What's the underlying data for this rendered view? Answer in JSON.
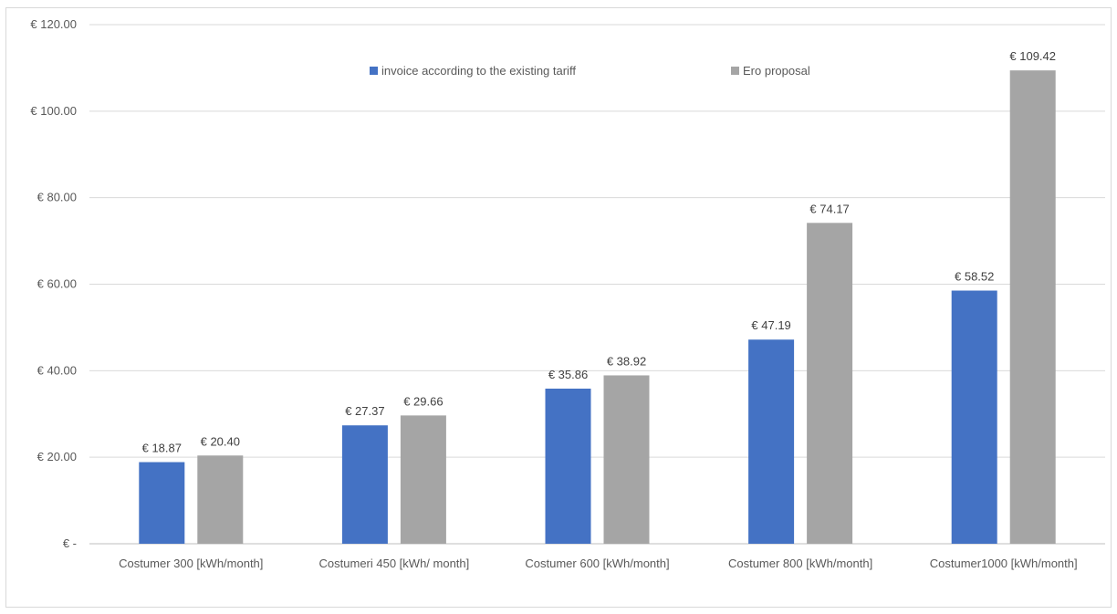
{
  "chart_data": {
    "type": "bar",
    "title": "",
    "xlabel": "",
    "ylabel": "",
    "ylim": [
      0,
      120
    ],
    "yticks": [
      0,
      20,
      40,
      60,
      80,
      100,
      120
    ],
    "ytick_labels": [
      "€ -",
      "€ 20.00",
      "€ 40.00",
      "€ 60.00",
      "€ 80.00",
      "€ 100.00",
      "€ 120.00"
    ],
    "grid": true,
    "legend_position": "top",
    "categories": [
      "Costumer 300 [kWh/month]",
      "Costumeri 450 [kWh/ month]",
      "Costumer 600 [kWh/month]",
      "Costumer 800 [kWh/month]",
      "Costumer1000 [kWh/month]"
    ],
    "series": [
      {
        "name": "invoice according to the existing tariff",
        "color": "#4472c4",
        "values": [
          18.87,
          27.37,
          35.86,
          47.19,
          58.52
        ],
        "labels": [
          "€ 18.87",
          "€ 27.37",
          "€ 35.86",
          "€ 47.19",
          "€ 58.52"
        ]
      },
      {
        "name": "Ero proposal",
        "color": "#a5a5a5",
        "values": [
          20.4,
          29.66,
          38.92,
          74.17,
          109.42
        ],
        "labels": [
          "€ 20.40",
          "€ 29.66",
          "€ 38.92",
          "€ 74.17",
          "€ 109.42"
        ]
      }
    ]
  }
}
